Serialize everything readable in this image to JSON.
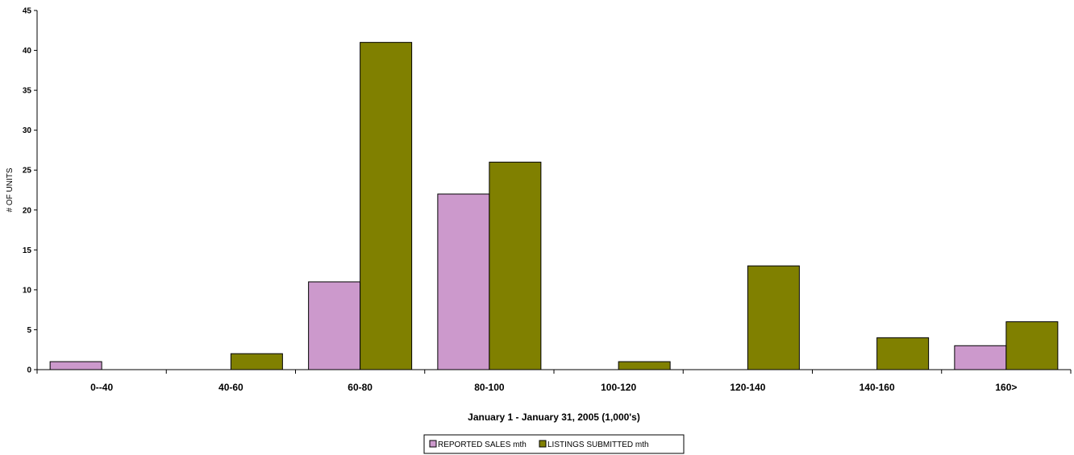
{
  "chart_data": {
    "type": "bar",
    "xlabel": "January 1 - January 31, 2005 (1,000's)",
    "ylabel": "# OF UNITS",
    "ylim": [
      0,
      45
    ],
    "yticks": [
      0,
      5,
      10,
      15,
      20,
      25,
      30,
      35,
      40,
      45
    ],
    "categories": [
      "0--40",
      "40-60",
      "60-80",
      "80-100",
      "100-120",
      "120-140",
      "140-160",
      "160>"
    ],
    "series": [
      {
        "name": "REPORTED SALES mth",
        "color": "#cc99cc",
        "values": [
          1,
          0,
          11,
          22,
          0,
          0,
          0,
          3
        ]
      },
      {
        "name": "LISTINGS SUBMITTED mth",
        "color": "#808000",
        "values": [
          0,
          2,
          41,
          26,
          1,
          13,
          4,
          6
        ]
      }
    ],
    "grid": false,
    "legend": "bottom"
  }
}
